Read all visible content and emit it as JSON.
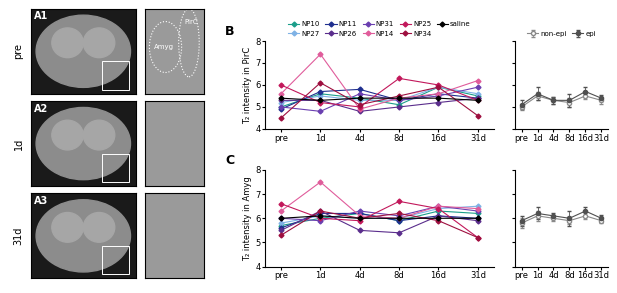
{
  "images": [
    {
      "label": "A1",
      "time": "pre",
      "annotations": [
        "Amyg",
        "PirC"
      ]
    },
    {
      "label": "A2",
      "time": "1d",
      "annotations": []
    },
    {
      "label": "A3",
      "time": "31d",
      "annotations": []
    }
  ],
  "chart_data": [
    {
      "type": "line",
      "panel_label": "B",
      "y_label": "T₂ intensity in PirC",
      "categories": [
        "pre",
        "1d",
        "4d",
        "8d",
        "16d",
        "31d"
      ],
      "ylim": [
        4,
        8
      ],
      "yticks": [
        4,
        5,
        6,
        7,
        8
      ],
      "legend": "top",
      "series": [
        {
          "name": "NP10",
          "color": "#1b9e8a",
          "marker": "diamond",
          "values": [
            5.0,
            5.6,
            5.4,
            5.1,
            5.9,
            5.5
          ]
        },
        {
          "name": "NP27",
          "color": "#7fb2e5",
          "marker": "diamond",
          "values": [
            5.2,
            5.5,
            5.3,
            5.3,
            5.9,
            5.6
          ]
        },
        {
          "name": "NP11",
          "color": "#1f2f8f",
          "marker": "diamond",
          "values": [
            4.9,
            5.7,
            5.8,
            5.3,
            5.6,
            5.4
          ]
        },
        {
          "name": "NP26",
          "color": "#5a2d8c",
          "marker": "diamond",
          "values": [
            5.3,
            5.3,
            4.8,
            5.0,
            5.2,
            5.4
          ]
        },
        {
          "name": "NP31",
          "color": "#6a3fb0",
          "marker": "diamond",
          "values": [
            5.0,
            4.8,
            5.6,
            5.3,
            5.5,
            5.9
          ]
        },
        {
          "name": "NP14",
          "color": "#e05c9b",
          "marker": "diamond",
          "values": [
            5.6,
            7.4,
            4.9,
            5.4,
            5.6,
            6.2
          ]
        },
        {
          "name": "NP25",
          "color": "#c2185b",
          "marker": "diamond",
          "values": [
            6.0,
            5.2,
            5.0,
            6.3,
            6.0,
            5.3
          ]
        },
        {
          "name": "NP34",
          "color": "#9e0f3f",
          "marker": "diamond",
          "values": [
            4.5,
            6.1,
            5.1,
            5.5,
            5.9,
            4.6
          ]
        },
        {
          "name": "saline",
          "color": "#000000",
          "marker": "diamond",
          "values": [
            5.4,
            5.3,
            5.4,
            5.4,
            5.4,
            5.3
          ]
        }
      ]
    },
    {
      "type": "line",
      "categories": [
        "pre",
        "1d",
        "4d",
        "8d",
        "16d",
        "31d"
      ],
      "ylim": [
        4,
        8
      ],
      "yticks": [
        4,
        5,
        6,
        7,
        8
      ],
      "legend": "top",
      "tick_labels": "x",
      "series": [
        {
          "name": "non-epi",
          "color": "#8a8a8a",
          "marker": "open-circle",
          "values": [
            5.0,
            5.5,
            5.3,
            5.2,
            5.5,
            5.3
          ],
          "errors": [
            0.15,
            0.2,
            0.15,
            0.2,
            0.15,
            0.15
          ]
        },
        {
          "name": "epi",
          "color": "#505050",
          "marker": "circle",
          "values": [
            5.1,
            5.6,
            5.3,
            5.3,
            5.7,
            5.4
          ],
          "errors": [
            0.2,
            0.3,
            0.15,
            0.3,
            0.2,
            0.15
          ]
        }
      ]
    },
    {
      "type": "line",
      "panel_label": "C",
      "y_label": "T₂ intensity in Amyg",
      "categories": [
        "pre",
        "1d",
        "4d",
        "8d",
        "16d",
        "31d"
      ],
      "ylim": [
        4,
        8
      ],
      "yticks": [
        4,
        5,
        6,
        7,
        8
      ],
      "series": [
        {
          "color": "#1b9e8a",
          "marker": "diamond",
          "values": [
            5.7,
            6.0,
            6.2,
            5.9,
            6.3,
            6.2
          ]
        },
        {
          "color": "#7fb2e5",
          "marker": "diamond",
          "values": [
            5.8,
            6.1,
            6.0,
            6.0,
            6.4,
            6.5
          ]
        },
        {
          "color": "#1f2f8f",
          "marker": "diamond",
          "values": [
            5.6,
            6.2,
            6.2,
            5.9,
            6.1,
            6.0
          ]
        },
        {
          "color": "#5a2d8c",
          "marker": "diamond",
          "values": [
            5.5,
            6.3,
            5.5,
            5.4,
            6.1,
            5.9
          ]
        },
        {
          "color": "#6a3fb0",
          "marker": "diamond",
          "values": [
            6.0,
            5.9,
            6.3,
            6.1,
            6.5,
            6.3
          ]
        },
        {
          "color": "#e05c9b",
          "marker": "diamond",
          "values": [
            6.3,
            7.5,
            6.1,
            6.0,
            6.5,
            6.4
          ]
        },
        {
          "color": "#c2185b",
          "marker": "diamond",
          "values": [
            6.6,
            6.0,
            5.9,
            6.7,
            6.4,
            5.2
          ]
        },
        {
          "color": "#9e0f3f",
          "marker": "diamond",
          "values": [
            5.3,
            6.3,
            6.0,
            6.2,
            5.9,
            5.2
          ]
        },
        {
          "color": "#000000",
          "marker": "diamond",
          "values": [
            6.0,
            6.1,
            6.0,
            6.0,
            6.0,
            6.0
          ]
        }
      ]
    },
    {
      "type": "line",
      "categories": [
        "pre",
        "1d",
        "4d",
        "8d",
        "16d",
        "31d"
      ],
      "ylim": [
        4,
        8
      ],
      "yticks": [
        4,
        5,
        6,
        7,
        8
      ],
      "tick_labels": "x",
      "series": [
        {
          "color": "#8a8a8a",
          "marker": "open-circle",
          "values": [
            5.8,
            6.1,
            6.0,
            5.9,
            6.1,
            5.9
          ],
          "errors": [
            0.2,
            0.2,
            0.1,
            0.15,
            0.15,
            0.1
          ]
        },
        {
          "color": "#505050",
          "marker": "circle",
          "values": [
            5.9,
            6.2,
            6.1,
            6.0,
            6.3,
            6.0
          ],
          "errors": [
            0.2,
            0.25,
            0.1,
            0.3,
            0.15,
            0.15
          ]
        }
      ]
    }
  ]
}
